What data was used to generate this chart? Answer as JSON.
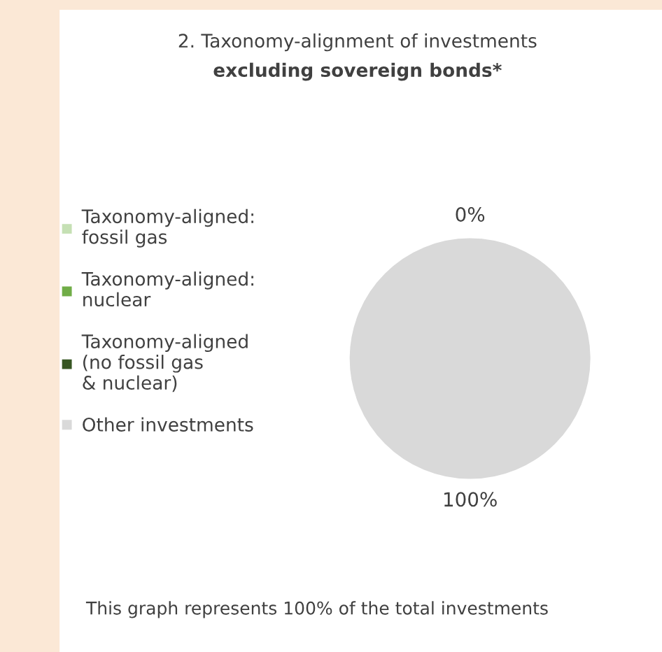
{
  "chart_data": {
    "type": "pie",
    "title": "2. Taxonomy-alignment of investments",
    "subtitle": "excluding sovereign bonds*",
    "categories": [
      "Taxonomy-aligned:\nfossil gas",
      "Taxonomy-aligned:\nnuclear",
      "Taxonomy-aligned\n(no fossil gas\n& nuclear)",
      "Other investments"
    ],
    "values": [
      0,
      0,
      0,
      100
    ],
    "colors": [
      "#c5e0b4",
      "#70ad47",
      "#375623",
      "#d9d9d9"
    ],
    "value_labels": [
      "0%",
      null,
      null,
      "100%"
    ],
    "legend": "left",
    "annotations": [
      "This graph represents 100% of the total investments"
    ]
  }
}
